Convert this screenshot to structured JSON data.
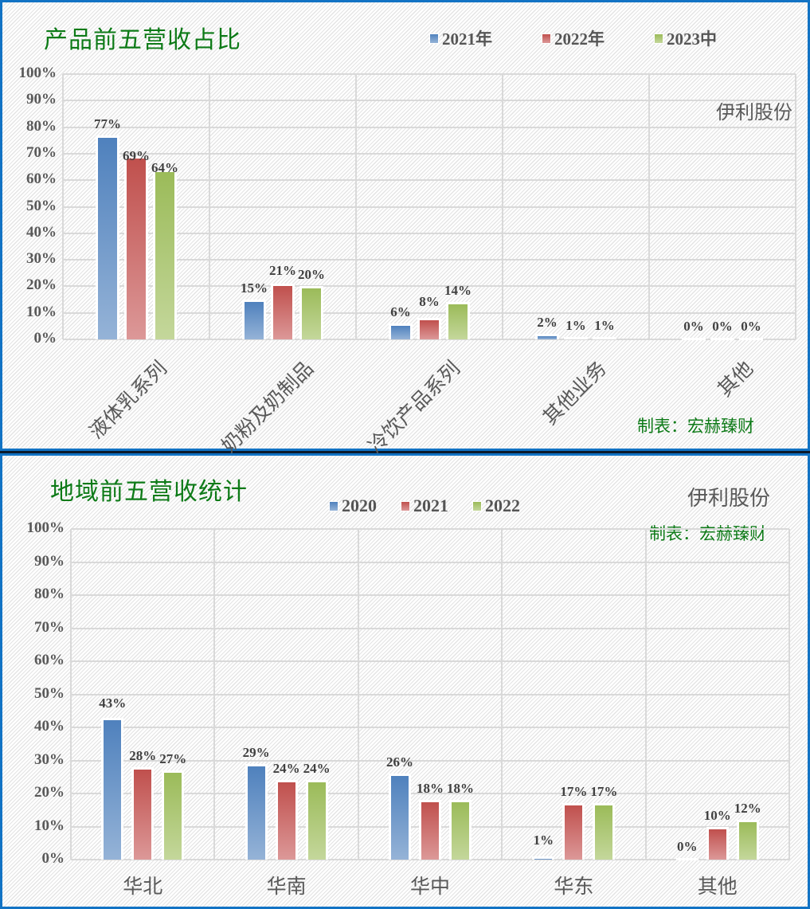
{
  "chart_data": [
    {
      "type": "bar",
      "title": "产品前五营收占比",
      "brand": "伊利股份",
      "credit": "制表：宏赫臻财",
      "categories": [
        "液体乳系列",
        "奶粉及奶制品",
        "冷饮产品系列",
        "其他业务",
        "其他"
      ],
      "series": [
        {
          "name": "2021年",
          "values": [
            77,
            15,
            6,
            2,
            0
          ],
          "labels": [
            "77%",
            "15%",
            "6%",
            "2%",
            "0%"
          ],
          "color": "#4f81bd"
        },
        {
          "name": "2022年",
          "values": [
            69,
            21,
            8,
            1,
            0
          ],
          "labels": [
            "69%",
            "21%",
            "8%",
            "1%",
            "0%"
          ],
          "color": "#c0504d"
        },
        {
          "name": "2023中",
          "values": [
            64,
            20,
            14,
            1,
            0
          ],
          "labels": [
            "64%",
            "20%",
            "14%",
            "1%",
            "0%"
          ],
          "color": "#9bbb59"
        }
      ],
      "yticks": [
        "0%",
        "10%",
        "20%",
        "30%",
        "40%",
        "50%",
        "60%",
        "70%",
        "80%",
        "90%",
        "100%"
      ],
      "xlabel": "",
      "ylabel": "",
      "ylim": [
        0,
        100
      ],
      "grid": true,
      "legend_position": "top"
    },
    {
      "type": "bar",
      "title": "地域前五营收统计",
      "brand": "伊利股份",
      "credit": "制表：宏赫臻财",
      "categories": [
        "华北",
        "华南",
        "华中",
        "华东",
        "其他"
      ],
      "series": [
        {
          "name": "2020",
          "values": [
            43,
            29,
            26,
            1,
            0
          ],
          "labels": [
            "43%",
            "29%",
            "26%",
            "1%",
            "0%"
          ],
          "color": "#4f81bd"
        },
        {
          "name": "2021",
          "values": [
            28,
            24,
            18,
            17,
            10
          ],
          "labels": [
            "28%",
            "24%",
            "18%",
            "17%",
            "10%"
          ],
          "color": "#c0504d"
        },
        {
          "name": "2022",
          "values": [
            27,
            24,
            18,
            17,
            12
          ],
          "labels": [
            "27%",
            "24%",
            "18%",
            "17%",
            "12%"
          ],
          "color": "#9bbb59"
        }
      ],
      "yticks": [
        "0%",
        "10%",
        "20%",
        "30%",
        "40%",
        "50%",
        "60%",
        "70%",
        "80%",
        "90%",
        "100%"
      ],
      "xlabel": "",
      "ylabel": "",
      "ylim": [
        0,
        100
      ],
      "grid": true,
      "legend_position": "top"
    }
  ]
}
